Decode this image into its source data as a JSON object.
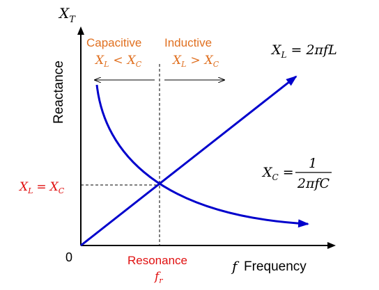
{
  "colors": {
    "axis": "#000000",
    "curve": "#0000cc",
    "orange": "#e07020",
    "red": "#e01010"
  },
  "labels": {
    "y_axis_symbol": "X",
    "y_axis_subscript": "T",
    "y_axis_name": "Reactance",
    "origin": "0",
    "x_axis_symbol": "f",
    "x_axis_name": "Frequency",
    "capacitive": "Capacitive",
    "capacitive_cond_left": "X",
    "capacitive_cond_left_sub": "L",
    "capacitive_cond_op": "<",
    "capacitive_cond_right": "X",
    "capacitive_cond_right_sub": "C",
    "inductive": "Inductive",
    "inductive_cond_left": "X",
    "inductive_cond_left_sub": "L",
    "inductive_cond_op": ">",
    "inductive_cond_right": "X",
    "inductive_cond_right_sub": "C",
    "xl_formula_lhs": "X",
    "xl_formula_lhs_sub": "L",
    "xl_formula_rhs": "= 2πfL",
    "xc_formula_lhs": "X",
    "xc_formula_lhs_sub": "C",
    "xc_formula_eq": "=",
    "xc_formula_num": "1",
    "xc_formula_den": "2πfC",
    "equal_left": "X",
    "equal_left_sub": "L",
    "equal_op": "=",
    "equal_right": "X",
    "equal_right_sub": "C",
    "resonance": "Resonance",
    "fr_symbol": "f",
    "fr_subscript": "r"
  }
}
